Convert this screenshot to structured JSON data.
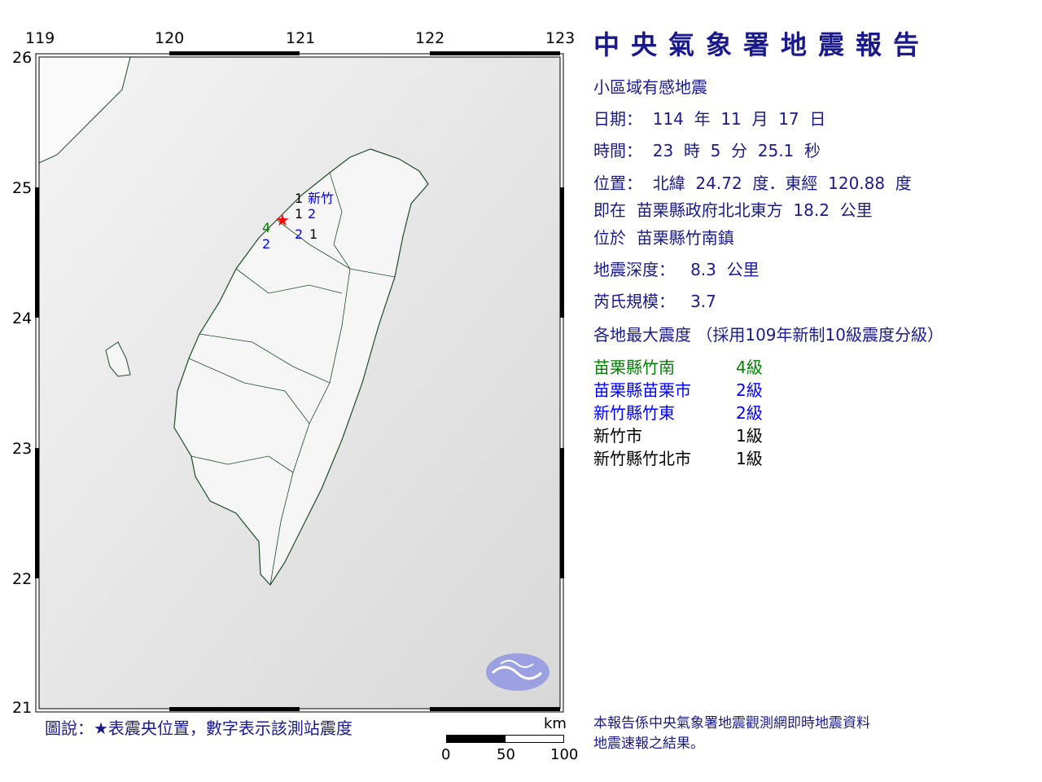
{
  "map": {
    "lon_ticks": [
      "119",
      "120",
      "121",
      "122",
      "123"
    ],
    "lat_ticks": [
      "26",
      "25",
      "24",
      "23",
      "22",
      "21"
    ],
    "epicenter": {
      "lat": 24.72,
      "lon": 120.88,
      "color": "#ff0000"
    },
    "station_labels": [
      {
        "text": "1",
        "color": "#000000"
      },
      {
        "text": "1",
        "color": "#000000"
      },
      {
        "text": "新竹",
        "color": "#0000ff"
      },
      {
        "text": "2",
        "color": "#0000ff"
      },
      {
        "text": "4",
        "color": "#008000"
      },
      {
        "text": "2",
        "color": "#0000ff"
      },
      {
        "text": "1",
        "color": "#000000"
      },
      {
        "text": "2",
        "color": "#0000ff"
      }
    ],
    "legend": "圖說：★表震央位置，數字表示該測站震度",
    "scale": {
      "unit": "km",
      "labels": [
        "0",
        "50",
        "100"
      ]
    },
    "logo": "cwa-logo"
  },
  "report": {
    "title": "中央氣象署地震報告",
    "type": "小區域有感地震",
    "date": "日期：  114  年  11  月  17  日",
    "time": "時間：  23  時  5  分  25.1  秒",
    "location": "位置：  北緯  24.72  度．東經  120.88  度",
    "relative": "即在  苗栗縣政府北北東方  18.2  公里",
    "town": "位於  苗栗縣竹南鎮",
    "depth": "地震深度：   8.3  公里",
    "magnitude": "芮氏規模：   3.7",
    "intensity_header": "各地最大震度 （採用109年新制10級震度分級）",
    "intensities": [
      {
        "area": "苗栗縣竹南",
        "level": "4級",
        "color": "#008000"
      },
      {
        "area": "苗栗縣苗栗市",
        "level": "2級",
        "color": "#0000ff"
      },
      {
        "area": "新竹縣竹東",
        "level": "2級",
        "color": "#0000ff"
      },
      {
        "area": "新竹市",
        "level": "1級",
        "color": "#000000"
      },
      {
        "area": "新竹縣竹北市",
        "level": "1級",
        "color": "#000000"
      }
    ],
    "footer": [
      "本報告係中央氣象署地震觀測網即時地震資料",
      "地震速報之結果。"
    ]
  }
}
